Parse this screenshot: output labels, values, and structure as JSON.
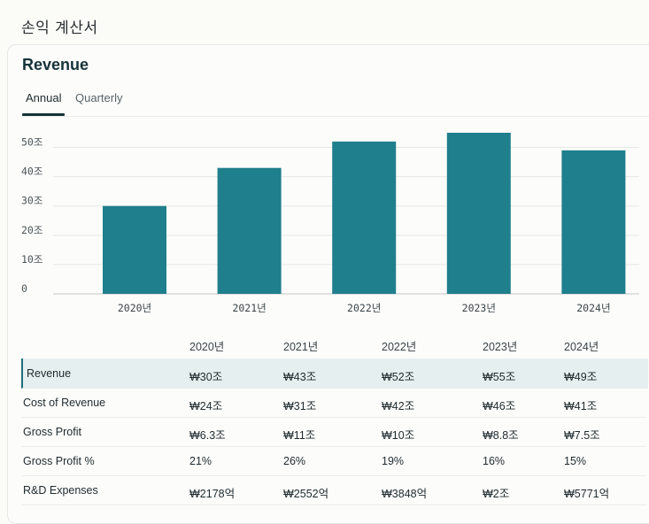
{
  "page": {
    "heading": "손익 계산서"
  },
  "card": {
    "title": "Revenue",
    "tabs": [
      {
        "label": "Annual",
        "active": true
      },
      {
        "label": "Quarterly",
        "active": false
      }
    ]
  },
  "chart_data": {
    "type": "bar",
    "title": "Revenue",
    "categories": [
      "2020년",
      "2021년",
      "2022년",
      "2023년",
      "2024년"
    ],
    "values": [
      30,
      43,
      52,
      55,
      49
    ],
    "ylim": [
      0,
      55
    ],
    "yticks": [
      0,
      10,
      20,
      30,
      40,
      50
    ],
    "ytick_labels": [
      "0",
      "10조",
      "20조",
      "30조",
      "40조",
      "50조"
    ],
    "ylabel": "",
    "xlabel": "",
    "grid": true,
    "bar_color": "#1f7f8c"
  },
  "table": {
    "columns": [
      "2020년",
      "2021년",
      "2022년",
      "2023년",
      "2024년"
    ],
    "rows": [
      {
        "label": "Revenue",
        "values": [
          "₩30조",
          "₩43조",
          "₩52조",
          "₩55조",
          "₩49조"
        ],
        "highlight": true
      },
      {
        "label": "Cost of Revenue",
        "values": [
          "₩24조",
          "₩31조",
          "₩42조",
          "₩46조",
          "₩41조"
        ]
      },
      {
        "label": "Gross Profit",
        "values": [
          "₩6.3조",
          "₩11조",
          "₩10조",
          "₩8.8조",
          "₩7.5조"
        ]
      },
      {
        "label": "Gross Profit %",
        "values": [
          "21%",
          "26%",
          "19%",
          "16%",
          "15%"
        ]
      },
      {
        "label": "R&D Expenses",
        "values": [
          "₩2178억",
          "₩2552억",
          "₩3848억",
          "₩2조",
          "₩5771억"
        ]
      }
    ]
  },
  "colors": {
    "accent": "#1f7f8c",
    "dark": "#16323a",
    "highlight_row": "#e5eff0"
  }
}
